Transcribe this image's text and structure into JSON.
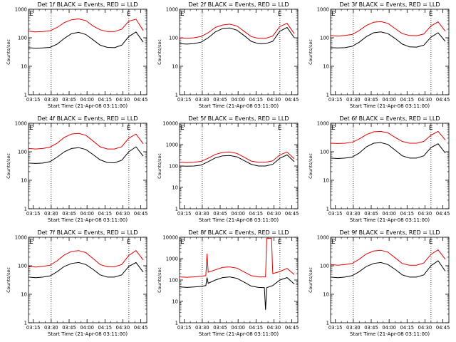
{
  "chart_data": [
    {
      "type": "line",
      "title": "Det 1f BLACK = Events, RED = LLD",
      "xlabel": "Start Time (21-Apr-08 03:11:00)",
      "ylabel": "Counts/sec",
      "yscale": "log",
      "ylim": [
        1,
        1000
      ],
      "xlim": [
        "03:11",
        "04:50"
      ],
      "x_ticks": [
        "03:15",
        "03:30",
        "03:45",
        "04:00",
        "04:15",
        "04:30",
        "04:45"
      ],
      "y_ticks": [
        "1",
        "10",
        "100",
        "1000"
      ],
      "markers": [
        "E",
        "E"
      ],
      "series": [
        {
          "color": "#000000",
          "x": [
            "03:11",
            "03:17",
            "03:23",
            "03:29",
            "03:35",
            "03:41",
            "03:47",
            "03:53",
            "03:59",
            "04:05",
            "04:11",
            "04:17",
            "04:23",
            "04:29",
            "04:35",
            "04:41",
            "04:47"
          ],
          "values": [
            45,
            43,
            44,
            46,
            60,
            95,
            140,
            155,
            130,
            85,
            55,
            46,
            45,
            55,
            110,
            160,
            70
          ]
        },
        {
          "color": "#e00000",
          "x": [
            "03:11",
            "03:17",
            "03:23",
            "03:29",
            "03:35",
            "03:41",
            "03:47",
            "03:53",
            "03:59",
            "04:05",
            "04:11",
            "04:17",
            "04:23",
            "04:29",
            "04:35",
            "04:41",
            "04:47"
          ],
          "values": [
            170,
            160,
            165,
            175,
            230,
            340,
            430,
            460,
            400,
            260,
            190,
            165,
            165,
            200,
            380,
            450,
            180
          ]
        }
      ]
    },
    {
      "type": "line",
      "title": "Det 2f BLACK = Events, RED = LLD",
      "xlabel": "Start Time (21-Apr-08 03:11:00)",
      "ylabel": "Counts/sec",
      "yscale": "log",
      "ylim": [
        1,
        1000
      ],
      "xlim": [
        "03:11",
        "04:50"
      ],
      "x_ticks": [
        "03:15",
        "03:30",
        "03:45",
        "04:00",
        "04:15",
        "04:30",
        "04:45"
      ],
      "y_ticks": [
        "1",
        "10",
        "100",
        "1000"
      ],
      "markers": [
        "E",
        "E"
      ],
      "series": [
        {
          "color": "#000000",
          "x": [
            "03:11",
            "03:17",
            "03:23",
            "03:29",
            "03:35",
            "03:41",
            "03:47",
            "03:53",
            "03:59",
            "04:05",
            "04:11",
            "04:17",
            "04:23",
            "04:29",
            "04:35",
            "04:41",
            "04:47"
          ],
          "values": [
            62,
            60,
            62,
            70,
            100,
            160,
            210,
            220,
            185,
            120,
            75,
            62,
            62,
            75,
            170,
            230,
            100
          ]
        },
        {
          "color": "#e00000",
          "x": [
            "03:11",
            "03:17",
            "03:23",
            "03:29",
            "03:35",
            "03:41",
            "03:47",
            "03:53",
            "03:59",
            "04:05",
            "04:11",
            "04:17",
            "04:23",
            "04:29",
            "04:35",
            "04:41",
            "04:47"
          ],
          "values": [
            100,
            95,
            100,
            110,
            150,
            230,
            280,
            300,
            260,
            170,
            110,
            95,
            95,
            115,
            250,
            320,
            140
          ]
        }
      ]
    },
    {
      "type": "line",
      "title": "Det 3f BLACK = Events, RED = LLD",
      "xlabel": "Start Time (21-Apr-08 03:11:00)",
      "ylabel": "Counts/sec",
      "yscale": "log",
      "ylim": [
        1,
        1000
      ],
      "xlim": [
        "03:11",
        "04:50"
      ],
      "x_ticks": [
        "03:15",
        "03:30",
        "03:45",
        "04:00",
        "04:15",
        "04:30",
        "04:45"
      ],
      "y_ticks": [
        "1",
        "10",
        "100",
        "1000"
      ],
      "markers": [
        "E",
        "E"
      ],
      "series": [
        {
          "color": "#000000",
          "x": [
            "03:11",
            "03:17",
            "03:23",
            "03:29",
            "03:35",
            "03:41",
            "03:47",
            "03:53",
            "03:59",
            "04:05",
            "04:11",
            "04:17",
            "04:23",
            "04:29",
            "04:35",
            "04:41",
            "04:47"
          ],
          "values": [
            45,
            44,
            45,
            50,
            70,
            110,
            150,
            160,
            140,
            95,
            60,
            48,
            47,
            55,
            105,
            150,
            75
          ]
        },
        {
          "color": "#e00000",
          "x": [
            "03:11",
            "03:17",
            "03:23",
            "03:29",
            "03:35",
            "03:41",
            "03:47",
            "03:53",
            "03:59",
            "04:05",
            "04:11",
            "04:17",
            "04:23",
            "04:29",
            "04:35",
            "04:41",
            "04:47"
          ],
          "values": [
            120,
            115,
            120,
            130,
            180,
            270,
            350,
            370,
            320,
            210,
            140,
            120,
            118,
            135,
            260,
            360,
            170
          ]
        }
      ]
    },
    {
      "type": "line",
      "title": "Det 4f BLACK = Events, RED = LLD",
      "xlabel": "Start Time (21-Apr-08 03:11:00)",
      "ylabel": "Counts/sec",
      "yscale": "log",
      "ylim": [
        1,
        1000
      ],
      "xlim": [
        "03:11",
        "04:50"
      ],
      "x_ticks": [
        "03:15",
        "03:30",
        "03:45",
        "04:00",
        "04:15",
        "04:30",
        "04:45"
      ],
      "y_ticks": [
        "1",
        "10",
        "100",
        "1000"
      ],
      "markers": [
        "E",
        "E"
      ],
      "series": [
        {
          "color": "#000000",
          "x": [
            "03:11",
            "03:17",
            "03:23",
            "03:29",
            "03:35",
            "03:41",
            "03:47",
            "03:53",
            "03:59",
            "04:05",
            "04:11",
            "04:17",
            "04:23",
            "04:29",
            "04:35",
            "04:41",
            "04:47"
          ],
          "values": [
            40,
            39,
            40,
            45,
            65,
            100,
            130,
            140,
            120,
            80,
            52,
            42,
            41,
            50,
            100,
            150,
            70
          ]
        },
        {
          "color": "#e00000",
          "x": [
            "03:11",
            "03:17",
            "03:23",
            "03:29",
            "03:35",
            "03:41",
            "03:47",
            "03:53",
            "03:59",
            "04:05",
            "04:11",
            "04:17",
            "04:23",
            "04:29",
            "04:35",
            "04:41",
            "04:47"
          ],
          "values": [
            130,
            125,
            130,
            145,
            200,
            320,
            420,
            440,
            380,
            240,
            150,
            125,
            125,
            150,
            300,
            420,
            190
          ]
        }
      ]
    },
    {
      "type": "line",
      "title": "Det 5f BLACK = Events, RED = LLD",
      "xlabel": "Start Time (21-Apr-08 03:11:00)",
      "ylabel": "Counts/sec",
      "yscale": "log",
      "ylim": [
        1,
        10000
      ],
      "xlim": [
        "03:11",
        "04:50"
      ],
      "x_ticks": [
        "03:15",
        "03:30",
        "03:45",
        "04:00",
        "04:15",
        "04:30",
        "04:45"
      ],
      "y_ticks": [
        "1",
        "10",
        "100",
        "1000",
        "10000"
      ],
      "markers": [
        "E",
        "E"
      ],
      "series": [
        {
          "color": "#000000",
          "x": [
            "03:11",
            "03:17",
            "03:23",
            "03:29",
            "03:35",
            "03:41",
            "03:47",
            "03:53",
            "03:59",
            "04:05",
            "04:11",
            "04:17",
            "04:23",
            "04:29",
            "04:35",
            "04:41",
            "04:47"
          ],
          "values": [
            100,
            98,
            100,
            110,
            160,
            240,
            300,
            310,
            270,
            180,
            120,
            100,
            100,
            120,
            230,
            330,
            160
          ]
        },
        {
          "color": "#e00000",
          "x": [
            "03:11",
            "03:17",
            "03:23",
            "03:29",
            "03:35",
            "03:41",
            "03:47",
            "03:53",
            "03:59",
            "04:05",
            "04:11",
            "04:17",
            "04:23",
            "04:29",
            "04:35",
            "04:41",
            "04:47"
          ],
          "values": [
            150,
            145,
            150,
            165,
            230,
            350,
            430,
            450,
            390,
            260,
            170,
            150,
            150,
            175,
            330,
            450,
            220
          ]
        }
      ]
    },
    {
      "type": "line",
      "title": "Det 6f BLACK = Events, RED = LLD",
      "xlabel": "Start Time (21-Apr-08 03:11:00)",
      "ylabel": "Counts/sec",
      "yscale": "log",
      "ylim": [
        1,
        1000
      ],
      "xlim": [
        "03:11",
        "04:50"
      ],
      "x_ticks": [
        "03:15",
        "03:30",
        "03:45",
        "04:00",
        "04:15",
        "04:30",
        "04:45"
      ],
      "y_ticks": [
        "1",
        "10",
        "100",
        "1000"
      ],
      "markers": [
        "E",
        "E"
      ],
      "series": [
        {
          "color": "#000000",
          "x": [
            "03:11",
            "03:17",
            "03:23",
            "03:29",
            "03:35",
            "03:41",
            "03:47",
            "03:53",
            "03:59",
            "04:05",
            "04:11",
            "04:17",
            "04:23",
            "04:29",
            "04:35",
            "04:41",
            "04:47"
          ],
          "values": [
            60,
            58,
            60,
            65,
            90,
            150,
            200,
            210,
            180,
            115,
            72,
            60,
            60,
            72,
            140,
            190,
            90
          ]
        },
        {
          "color": "#e00000",
          "x": [
            "03:11",
            "03:17",
            "03:23",
            "03:29",
            "03:35",
            "03:41",
            "03:47",
            "03:53",
            "03:59",
            "04:05",
            "04:11",
            "04:17",
            "04:23",
            "04:29",
            "04:35",
            "04:41",
            "04:47"
          ],
          "values": [
            200,
            195,
            200,
            215,
            280,
            400,
            500,
            520,
            460,
            320,
            230,
            200,
            200,
            230,
            380,
            520,
            260
          ]
        }
      ]
    },
    {
      "type": "line",
      "title": "Det 7f BLACK = Events, RED = LLD",
      "xlabel": "Start Time (21-Apr-08 03:11:00)",
      "ylabel": "Counts/sec",
      "yscale": "log",
      "ylim": [
        1,
        1000
      ],
      "xlim": [
        "03:11",
        "04:50"
      ],
      "x_ticks": [
        "03:15",
        "03:30",
        "03:45",
        "04:00",
        "04:15",
        "04:30",
        "04:45"
      ],
      "y_ticks": [
        "1",
        "10",
        "100",
        "1000"
      ],
      "markers": [
        "E",
        "E"
      ],
      "series": [
        {
          "color": "#000000",
          "x": [
            "03:11",
            "03:17",
            "03:23",
            "03:29",
            "03:35",
            "03:41",
            "03:47",
            "03:53",
            "03:59",
            "04:05",
            "04:11",
            "04:17",
            "04:23",
            "04:29",
            "04:35",
            "04:41",
            "04:47"
          ],
          "values": [
            40,
            38,
            40,
            44,
            62,
            95,
            120,
            130,
            110,
            75,
            48,
            40,
            40,
            48,
            95,
            130,
            60
          ]
        },
        {
          "color": "#e00000",
          "x": [
            "03:11",
            "03:17",
            "03:23",
            "03:29",
            "03:35",
            "03:41",
            "03:47",
            "03:53",
            "03:59",
            "04:05",
            "04:11",
            "04:17",
            "04:23",
            "04:29",
            "04:35",
            "04:41",
            "04:47"
          ],
          "values": [
            95,
            90,
            95,
            105,
            150,
            240,
            320,
            340,
            290,
            180,
            110,
            92,
            92,
            110,
            230,
            340,
            160
          ]
        }
      ]
    },
    {
      "type": "line",
      "title": "Det 8f BLACK = Events, RED = LLD",
      "xlabel": "Start Time (21-Apr-08 03:11:00)",
      "ylabel": "Counts/sec",
      "yscale": "log",
      "ylim": [
        1,
        10000
      ],
      "xlim": [
        "03:11",
        "04:50"
      ],
      "x_ticks": [
        "03:15",
        "03:30",
        "03:45",
        "04:00",
        "04:15",
        "04:30",
        "04:45"
      ],
      "y_ticks": [
        "1",
        "10",
        "100",
        "1000",
        "10000"
      ],
      "markers": [
        "E",
        "E"
      ],
      "series": [
        {
          "color": "#000000",
          "x": [
            "03:11",
            "03:17",
            "03:23",
            "03:29",
            "03:33",
            "03:34",
            "03:35",
            "03:41",
            "03:47",
            "03:53",
            "03:59",
            "04:05",
            "04:11",
            "04:17",
            "04:22",
            "04:23",
            "04:24",
            "04:29",
            "04:35",
            "04:41",
            "04:47"
          ],
          "values": [
            48,
            45,
            47,
            50,
            55,
            130,
            70,
            100,
            130,
            140,
            120,
            80,
            52,
            45,
            44,
            4,
            44,
            55,
            100,
            130,
            65
          ]
        },
        {
          "color": "#e00000",
          "x": [
            "03:11",
            "03:17",
            "03:23",
            "03:29",
            "03:33",
            "03:34",
            "03:35",
            "03:41",
            "03:47",
            "03:53",
            "03:59",
            "04:05",
            "04:11",
            "04:17",
            "04:23",
            "04:24",
            "04:27",
            "04:28",
            "04:29",
            "04:35",
            "04:41",
            "04:47"
          ],
          "values": [
            140,
            135,
            140,
            150,
            160,
            1700,
            230,
            300,
            390,
            410,
            360,
            240,
            160,
            140,
            140,
            9000,
            9000,
            9000,
            200,
            250,
            350,
            180
          ]
        }
      ]
    },
    {
      "type": "line",
      "title": "Det 9f BLACK = Events, RED = LLD",
      "xlabel": "Start Time (21-Apr-08 03:11:00)",
      "ylabel": "Counts/sec",
      "yscale": "log",
      "ylim": [
        1,
        1000
      ],
      "xlim": [
        "03:11",
        "04:50"
      ],
      "x_ticks": [
        "03:15",
        "03:30",
        "03:45",
        "04:00",
        "04:15",
        "04:30",
        "04:45"
      ],
      "y_ticks": [
        "1",
        "10",
        "100",
        "1000"
      ],
      "markers": [
        "E",
        "E"
      ],
      "series": [
        {
          "color": "#000000",
          "x": [
            "03:11",
            "03:17",
            "03:23",
            "03:29",
            "03:35",
            "03:41",
            "03:47",
            "03:53",
            "03:59",
            "04:05",
            "04:11",
            "04:17",
            "04:23",
            "04:29",
            "04:35",
            "04:41",
            "04:47"
          ],
          "values": [
            40,
            38,
            40,
            45,
            62,
            95,
            120,
            130,
            110,
            75,
            48,
            40,
            40,
            48,
            100,
            150,
            65
          ]
        },
        {
          "color": "#e00000",
          "x": [
            "03:11",
            "03:17",
            "03:23",
            "03:29",
            "03:35",
            "03:41",
            "03:47",
            "03:53",
            "03:59",
            "04:05",
            "04:11",
            "04:17",
            "04:23",
            "04:29",
            "04:35",
            "04:41",
            "04:47"
          ],
          "values": [
            110,
            105,
            110,
            120,
            170,
            260,
            330,
            350,
            300,
            190,
            120,
            105,
            105,
            125,
            250,
            360,
            170
          ]
        }
      ]
    }
  ]
}
